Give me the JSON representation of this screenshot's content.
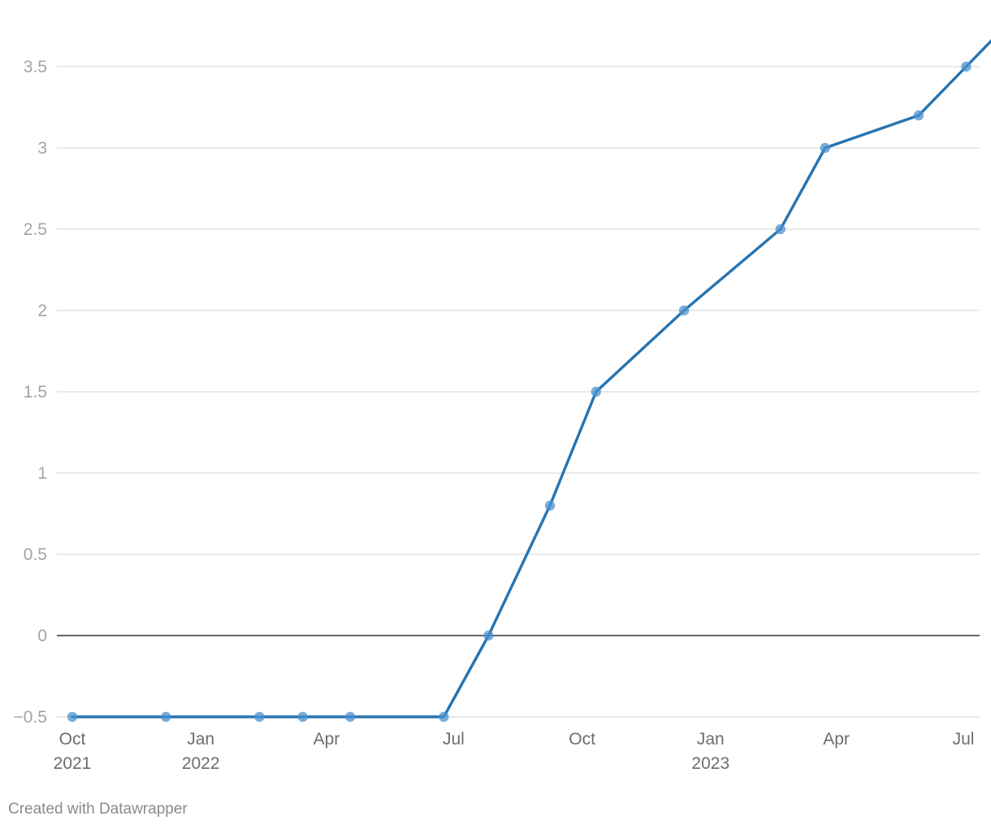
{
  "chart_data": {
    "type": "line",
    "title": "",
    "xlabel": "",
    "ylabel": "",
    "x_axis_type": "date",
    "xlim": [
      "2021-10-01",
      "2023-07-01"
    ],
    "ylim": [
      -0.5,
      3.8
    ],
    "y_ticks": [
      -0.5,
      0,
      0.5,
      1,
      1.5,
      2,
      2.5,
      3,
      3.5
    ],
    "y_tick_labels": [
      "−0.5",
      "0",
      "0.5",
      "1",
      "1.5",
      "2",
      "2.5",
      "3",
      "3.5"
    ],
    "x_ticks": [
      {
        "date": "2021-10-01",
        "label": "Oct",
        "year": "2021"
      },
      {
        "date": "2022-01-01",
        "label": "Jan",
        "year": "2022"
      },
      {
        "date": "2022-04-01",
        "label": "Apr",
        "year": ""
      },
      {
        "date": "2022-07-01",
        "label": "Jul",
        "year": ""
      },
      {
        "date": "2022-10-01",
        "label": "Oct",
        "year": ""
      },
      {
        "date": "2023-01-01",
        "label": "Jan",
        "year": "2023"
      },
      {
        "date": "2023-04-01",
        "label": "Apr",
        "year": ""
      },
      {
        "date": "2023-07-01",
        "label": "Jul",
        "year": ""
      }
    ],
    "grid": true,
    "legend": "none",
    "series": [
      {
        "color": "#2674b2",
        "point_color": "#4b91cd",
        "points": [
          {
            "date": "2021-10-01",
            "value": -0.5
          },
          {
            "date": "2021-12-07",
            "value": -0.5
          },
          {
            "date": "2022-02-12",
            "value": -0.5
          },
          {
            "date": "2022-03-15",
            "value": -0.5
          },
          {
            "date": "2022-04-18",
            "value": -0.5
          },
          {
            "date": "2022-06-24",
            "value": -0.5
          },
          {
            "date": "2022-07-26",
            "value": 0
          },
          {
            "date": "2022-09-08",
            "value": 0.8
          },
          {
            "date": "2022-10-11",
            "value": 1.5
          },
          {
            "date": "2022-12-13",
            "value": 2
          },
          {
            "date": "2023-02-20",
            "value": 2.5
          },
          {
            "date": "2023-03-24",
            "value": 3
          },
          {
            "date": "2023-05-30",
            "value": 3.2
          },
          {
            "date": "2023-07-03",
            "value": 3.5
          },
          {
            "date": "2023-08-06",
            "value": 3.8
          }
        ]
      }
    ]
  },
  "footer": {
    "credit": "Created with Datawrapper"
  }
}
